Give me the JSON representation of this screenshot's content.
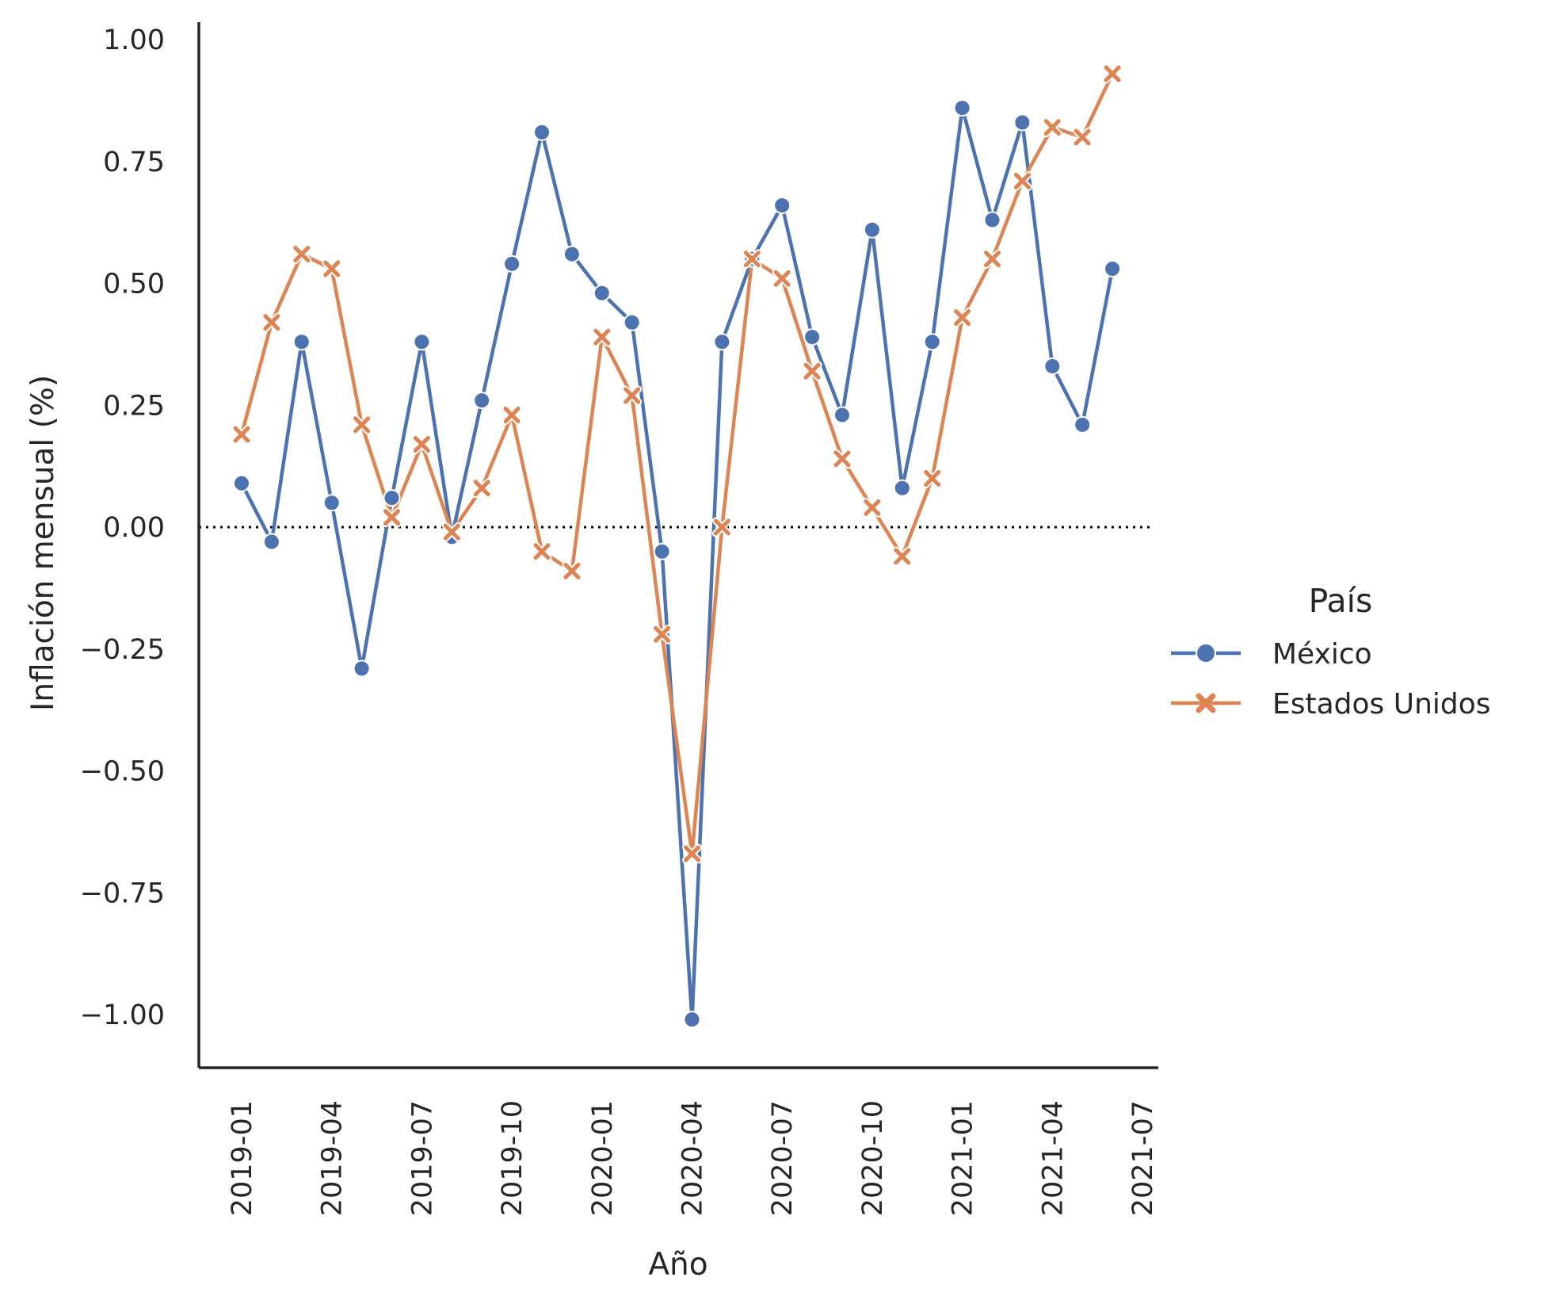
{
  "chart_data": {
    "type": "line",
    "xlabel": "Año",
    "ylabel": "Inflación mensual (%)",
    "x": [
      "2019-01",
      "2019-02",
      "2019-03",
      "2019-04",
      "2019-05",
      "2019-06",
      "2019-07",
      "2019-08",
      "2019-09",
      "2019-10",
      "2019-11",
      "2019-12",
      "2020-01",
      "2020-02",
      "2020-03",
      "2020-04",
      "2020-05",
      "2020-06",
      "2020-07",
      "2020-08",
      "2020-09",
      "2020-10",
      "2020-11",
      "2020-12",
      "2021-01",
      "2021-02",
      "2021-03",
      "2021-04",
      "2021-05",
      "2021-06"
    ],
    "x_ticks": [
      "2019-01",
      "2019-04",
      "2019-07",
      "2019-10",
      "2020-01",
      "2020-04",
      "2020-07",
      "2020-10",
      "2021-01",
      "2021-04",
      "2021-07"
    ],
    "y_ticks": [
      "1.00",
      "0.75",
      "0.50",
      "0.25",
      "0.00",
      "−0.25",
      "−0.50",
      "−0.75",
      "−1.00"
    ],
    "ylim": [
      -1.11,
      1.03
    ],
    "reference_line": {
      "y": 0,
      "style": "dotted",
      "color": "#000000"
    },
    "grid": false,
    "legend": {
      "title": "País",
      "placement": "right"
    },
    "series": [
      {
        "name": "México",
        "color": "#4c72b0",
        "marker": "circle",
        "values": [
          0.09,
          -0.03,
          0.38,
          0.05,
          -0.29,
          0.06,
          0.38,
          -0.02,
          0.26,
          0.54,
          0.81,
          0.56,
          0.48,
          0.42,
          -0.05,
          -1.01,
          0.38,
          0.55,
          0.66,
          0.39,
          0.23,
          0.61,
          0.08,
          0.38,
          0.86,
          0.63,
          0.83,
          0.33,
          0.21,
          0.53
        ]
      },
      {
        "name": "Estados Unidos",
        "color": "#dd8452",
        "marker": "x",
        "values": [
          0.19,
          0.42,
          0.56,
          0.53,
          0.21,
          0.02,
          0.17,
          -0.01,
          0.08,
          0.23,
          -0.05,
          -0.09,
          0.39,
          0.27,
          -0.22,
          -0.67,
          0.0,
          0.55,
          0.51,
          0.32,
          0.14,
          0.04,
          -0.06,
          0.1,
          0.43,
          0.55,
          0.71,
          0.82,
          0.8,
          0.93
        ]
      }
    ]
  }
}
